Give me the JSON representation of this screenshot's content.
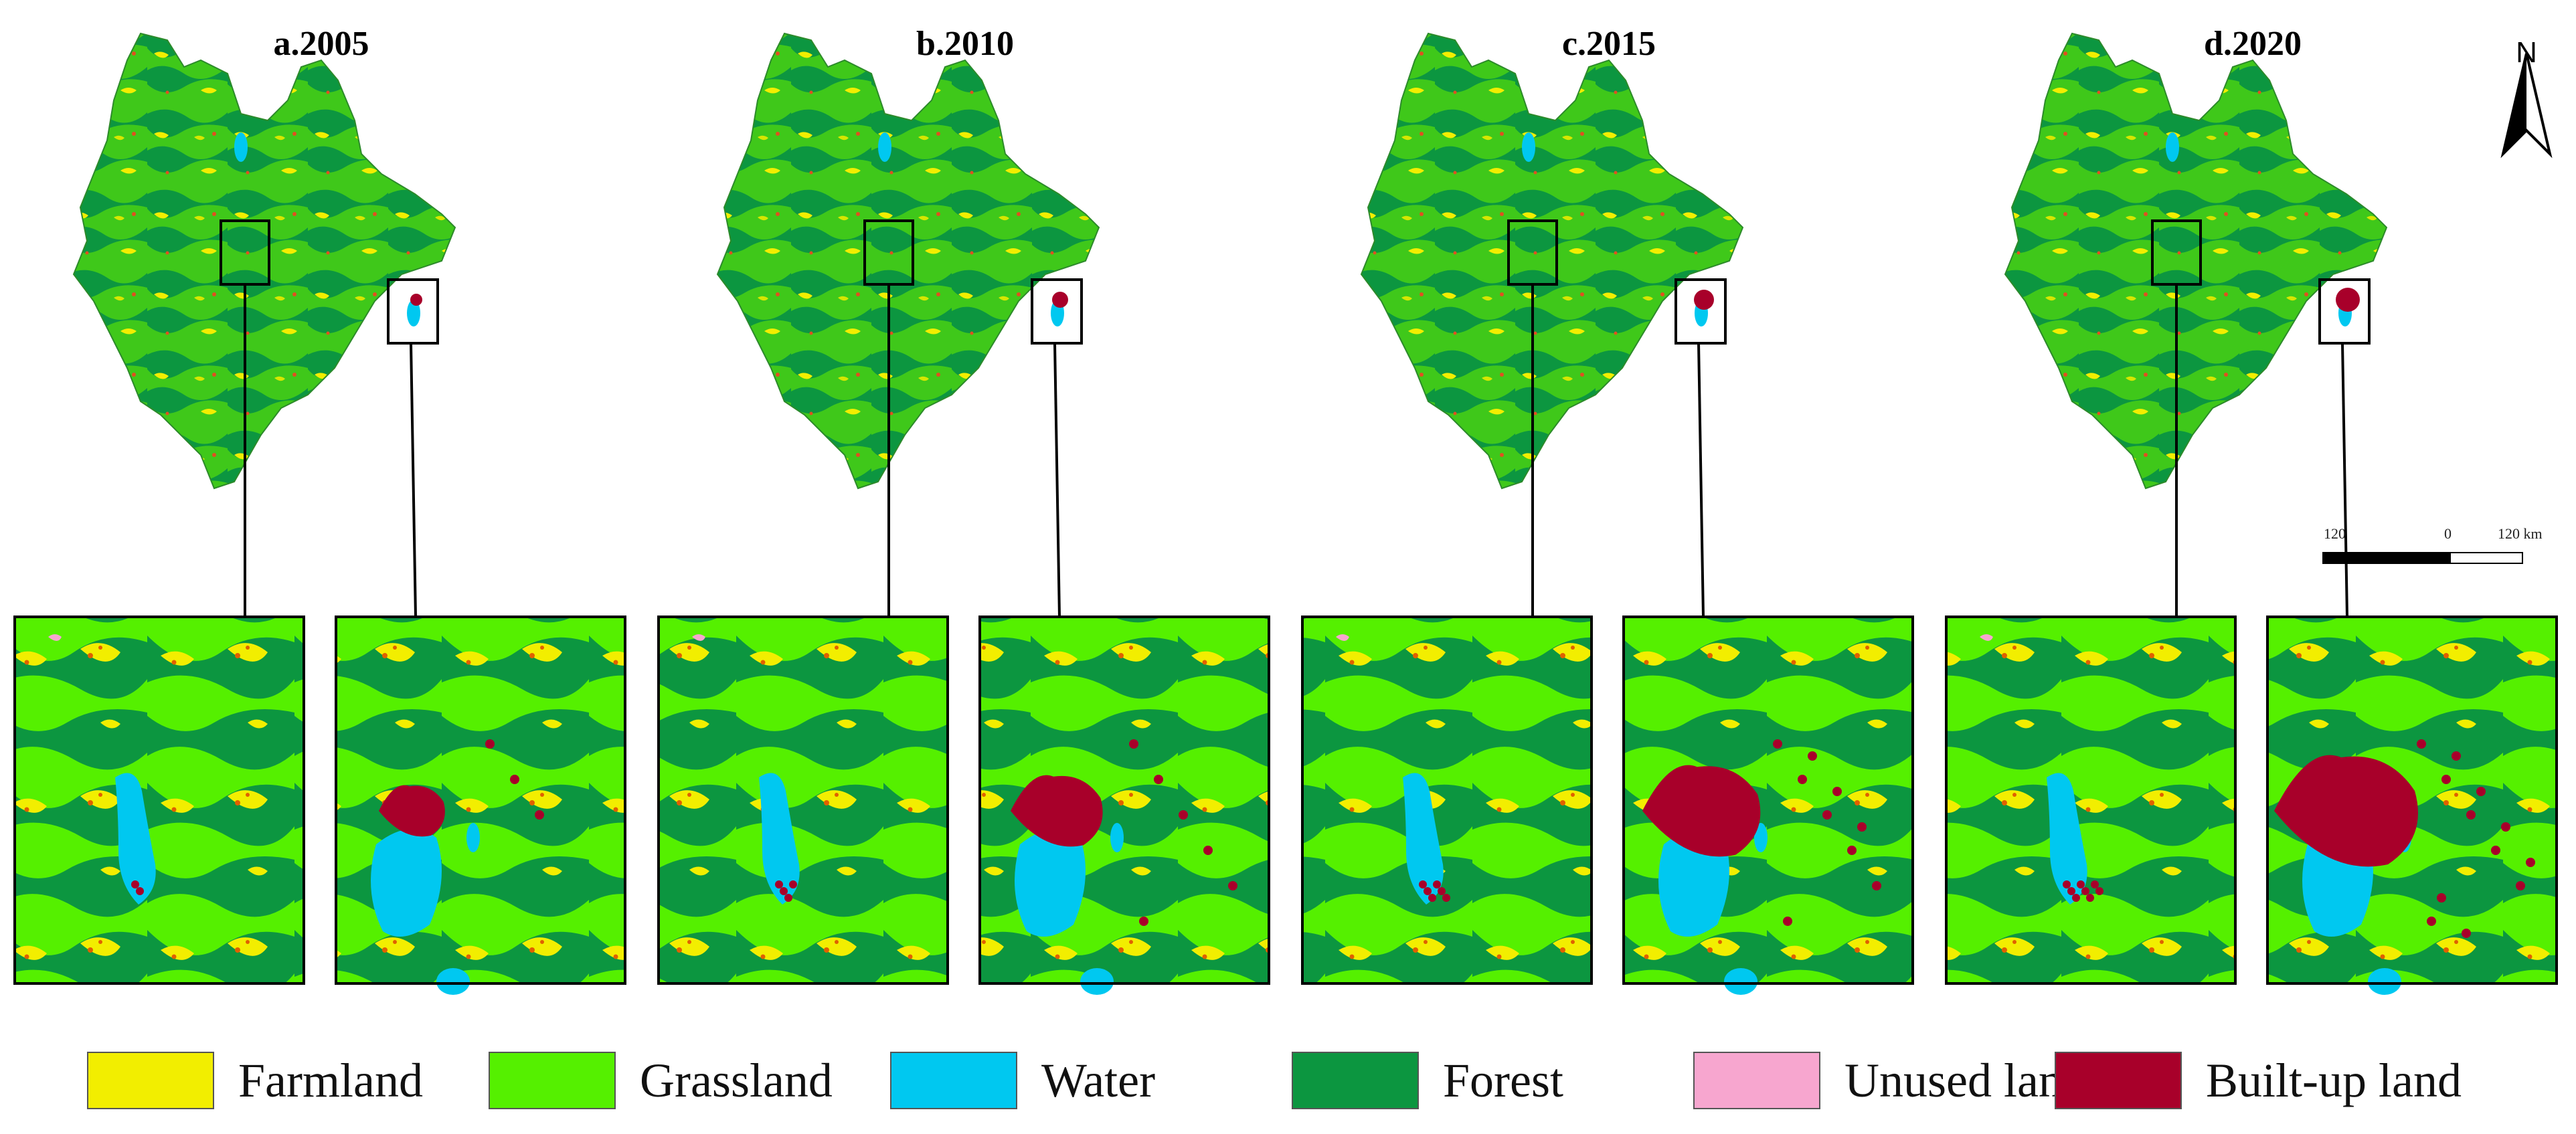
{
  "panels": [
    {
      "title": "a.2005",
      "builtup_level": 1
    },
    {
      "title": "b.2010",
      "builtup_level": 2
    },
    {
      "title": "c.2015",
      "builtup_level": 3
    },
    {
      "title": "d.2020",
      "builtup_level": 4
    }
  ],
  "north_arrow": {
    "label": "N"
  },
  "scale_bar": {
    "left_label": "120",
    "mid_label": "0",
    "right_label": "120 km"
  },
  "legend": [
    {
      "label": "Farmland",
      "color": "#f2ee00"
    },
    {
      "label": "Grassland",
      "color": "#55f000"
    },
    {
      "label": "Water",
      "color": "#00c8f0"
    },
    {
      "label": "Forest",
      "color": "#0c9640"
    },
    {
      "label": "Unused land",
      "color": "#f7a6cf"
    },
    {
      "label": "Built-up land",
      "color": "#a8002a"
    }
  ]
}
